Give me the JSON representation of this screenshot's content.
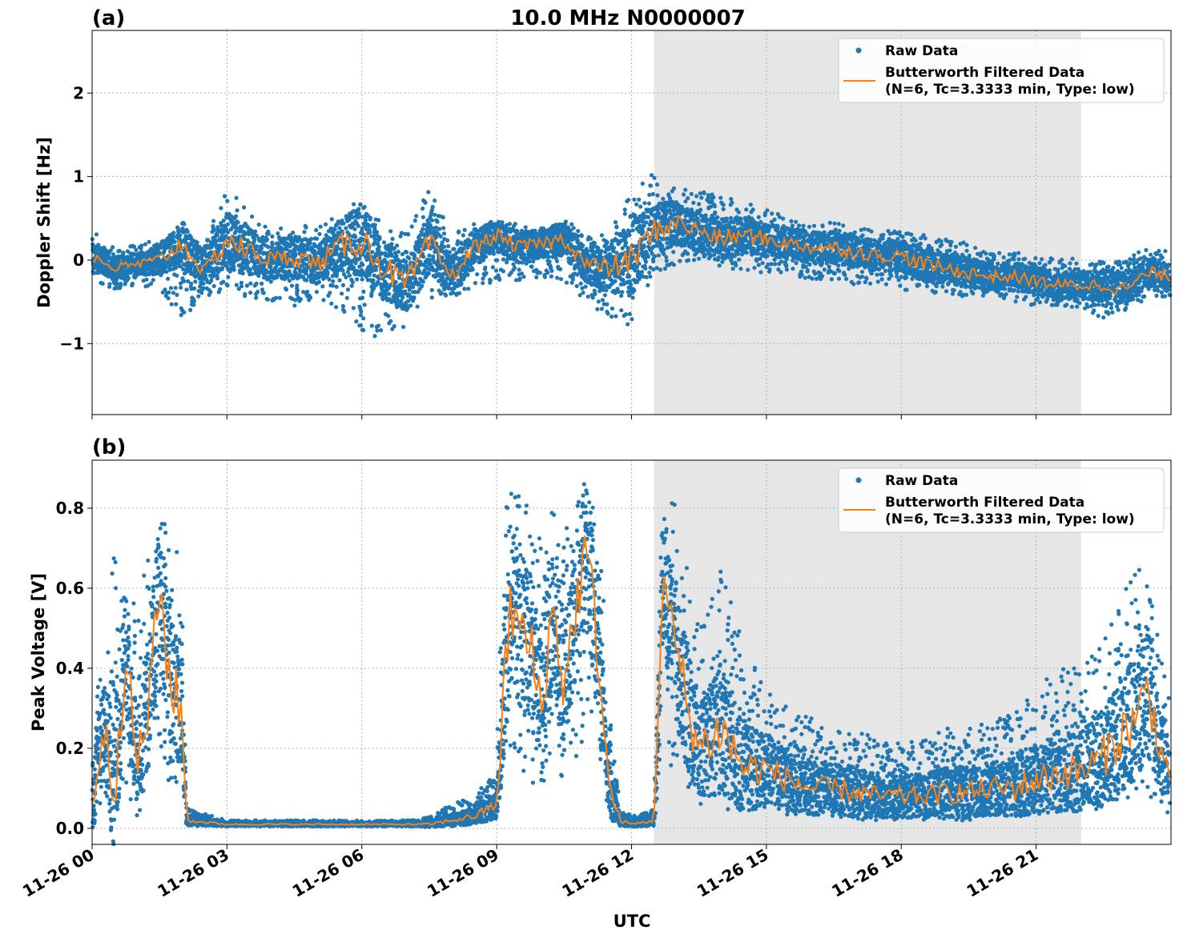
{
  "figure_title": "10.0 MHz N0000007",
  "x_axis": {
    "label": "UTC",
    "ticks": [
      "11-26 00",
      "11-26 03",
      "11-26 06",
      "11-26 09",
      "11-26 12",
      "11-26 15",
      "11-26 18",
      "11-26 21"
    ],
    "xlim_hours": [
      0,
      24
    ]
  },
  "shaded_interval_hours": [
    12.5,
    22.0
  ],
  "colors": {
    "raw": "#1f77b4",
    "filtered": "#ff7f0e",
    "shade": "#e6e6e6",
    "grid": "#b0b0b0"
  },
  "legend": {
    "raw_label": "Raw Data",
    "filtered_label_line1": "Butterworth Filtered Data",
    "filtered_label_line2": "(N=6, Tc=3.3333 min, Type: low)",
    "placement": "top-right"
  },
  "panels": {
    "a": {
      "tag": "(a)",
      "ylabel": "Doppler Shift [Hz]",
      "ylim": [
        -1.85,
        2.75
      ],
      "yticks": [
        "−1",
        "0",
        "1",
        "2"
      ],
      "ytick_values": [
        -1,
        0,
        1,
        2
      ]
    },
    "b": {
      "tag": "(b)",
      "ylabel": "Peak Voltage [V]",
      "ylim": [
        -0.04,
        0.92
      ],
      "yticks": [
        "0.0",
        "0.2",
        "0.4",
        "0.6",
        "0.8"
      ],
      "ytick_values": [
        0.0,
        0.2,
        0.4,
        0.6,
        0.8
      ]
    }
  },
  "chart_data": [
    {
      "type": "scatter",
      "title": "10.0 MHz N0000007",
      "xlabel": "UTC",
      "ylabel": "Doppler Shift [Hz]",
      "x_unit": "hours after 11-26 00 UTC",
      "xlim": [
        0,
        24
      ],
      "ylim": [
        -1.85,
        2.75
      ],
      "grid": true,
      "series": [
        {
          "name": "Butterworth Filtered Data",
          "x": [
            0,
            0.5,
            1,
            1.5,
            2,
            2.5,
            3,
            3.5,
            4,
            4.5,
            5,
            5.5,
            6,
            6.5,
            7,
            7.5,
            8,
            8.5,
            9,
            9.5,
            10,
            10.5,
            11,
            11.5,
            12,
            12.5,
            13,
            13.5,
            14,
            14.5,
            15,
            15.5,
            16,
            16.5,
            17,
            17.5,
            18,
            18.5,
            19,
            19.5,
            20,
            20.5,
            21,
            21.5,
            22,
            22.5,
            23,
            23.5,
            24
          ],
          "y": [
            0.05,
            -0.1,
            -0.05,
            0.0,
            0.2,
            -0.15,
            0.25,
            0.1,
            0.0,
            0.05,
            -0.05,
            0.15,
            0.25,
            -0.1,
            -0.3,
            0.2,
            -0.2,
            0.15,
            0.3,
            0.15,
            0.2,
            0.25,
            -0.05,
            -0.1,
            0.0,
            0.35,
            0.45,
            0.35,
            0.25,
            0.3,
            0.25,
            0.2,
            0.15,
            0.15,
            0.1,
            0.05,
            0.05,
            -0.05,
            -0.1,
            -0.15,
            -0.2,
            -0.2,
            -0.25,
            -0.3,
            -0.3,
            -0.3,
            -0.35,
            -0.15,
            -0.2
          ]
        },
        {
          "name": "Raw Data",
          "envelope_low": [
            -0.25,
            -0.35,
            -0.3,
            -0.35,
            -0.7,
            -0.45,
            -0.35,
            -0.45,
            -0.5,
            -0.55,
            -0.45,
            -0.65,
            -0.85,
            -1.0,
            -0.8,
            -0.45,
            -0.45,
            -0.35,
            -0.25,
            -0.25,
            -0.2,
            -0.25,
            -0.5,
            -0.7,
            -0.8,
            -0.15,
            -0.05,
            0.0,
            -0.1,
            -0.15,
            -0.15,
            -0.15,
            -0.25,
            -0.25,
            -0.3,
            -0.3,
            -0.35,
            -0.4,
            -0.4,
            -0.45,
            -0.45,
            -0.5,
            -0.55,
            -0.55,
            -0.6,
            -0.7,
            -0.6,
            -0.45,
            -0.45
          ],
          "envelope_high": [
            0.35,
            0.15,
            0.2,
            0.25,
            0.3,
            0.2,
            0.9,
            0.55,
            0.35,
            0.45,
            0.45,
            0.55,
            0.75,
            0.4,
            0.35,
            0.85,
            0.3,
            0.45,
            0.45,
            0.45,
            0.4,
            0.5,
            0.3,
            0.35,
            0.8,
            1.05,
            0.85,
            0.85,
            0.8,
            0.7,
            0.6,
            0.5,
            0.45,
            0.45,
            0.4,
            0.35,
            0.35,
            0.3,
            0.25,
            0.2,
            0.15,
            0.1,
            0.05,
            0.05,
            0.0,
            0.0,
            0.05,
            0.15,
            0.1
          ]
        }
      ]
    },
    {
      "type": "scatter",
      "xlabel": "UTC",
      "ylabel": "Peak Voltage [V]",
      "x_unit": "hours after 11-26 00 UTC",
      "xlim": [
        0,
        24
      ],
      "ylim": [
        -0.04,
        0.92
      ],
      "grid": true,
      "series": [
        {
          "name": "Butterworth Filtered Data",
          "x": [
            0,
            0.25,
            0.5,
            0.75,
            1,
            1.25,
            1.5,
            1.75,
            2,
            2.1,
            3,
            4,
            5,
            6,
            7,
            7.5,
            8,
            8.5,
            9,
            9.2,
            9.3,
            9.5,
            9.75,
            10,
            10.25,
            10.5,
            10.75,
            11,
            11.25,
            11.5,
            11.75,
            12,
            12.5,
            12.7,
            12.85,
            13,
            13.25,
            13.5,
            14,
            14.5,
            15,
            15.5,
            16,
            16.5,
            17,
            17.5,
            18,
            18.5,
            19,
            19.5,
            20,
            20.5,
            21,
            21.5,
            22,
            22.5,
            23,
            23.25,
            23.5,
            23.75,
            24
          ],
          "y": [
            0.06,
            0.25,
            0.1,
            0.45,
            0.15,
            0.3,
            0.6,
            0.35,
            0.3,
            0.02,
            0.01,
            0.01,
            0.01,
            0.01,
            0.01,
            0.01,
            0.02,
            0.03,
            0.06,
            0.4,
            0.55,
            0.5,
            0.45,
            0.3,
            0.55,
            0.35,
            0.55,
            0.7,
            0.45,
            0.1,
            0.02,
            0.01,
            0.02,
            0.65,
            0.5,
            0.45,
            0.3,
            0.2,
            0.25,
            0.15,
            0.15,
            0.12,
            0.1,
            0.1,
            0.09,
            0.08,
            0.08,
            0.08,
            0.09,
            0.09,
            0.1,
            0.1,
            0.12,
            0.14,
            0.14,
            0.18,
            0.25,
            0.28,
            0.35,
            0.2,
            0.12
          ]
        },
        {
          "name": "Raw Data",
          "envelope_low": [
            0.0,
            0.05,
            0.02,
            0.1,
            0.03,
            0.05,
            0.2,
            0.08,
            0.05,
            0.005,
            0.005,
            0.005,
            0.005,
            0.005,
            0.005,
            0.005,
            0.008,
            0.01,
            0.02,
            0.15,
            0.2,
            0.15,
            0.1,
            0.1,
            0.2,
            0.1,
            0.15,
            0.25,
            0.15,
            0.02,
            0.005,
            0.005,
            0.005,
            0.25,
            0.15,
            0.12,
            0.06,
            0.05,
            0.05,
            0.04,
            0.04,
            0.03,
            0.03,
            0.03,
            0.02,
            0.02,
            0.02,
            0.02,
            0.02,
            0.02,
            0.03,
            0.03,
            0.03,
            0.04,
            0.04,
            0.05,
            0.06,
            0.07,
            0.08,
            0.05,
            0.02
          ],
          "envelope_high": [
            0.3,
            0.5,
            0.7,
            0.6,
            0.55,
            0.7,
            0.85,
            0.75,
            0.65,
            0.05,
            0.02,
            0.02,
            0.02,
            0.02,
            0.02,
            0.03,
            0.06,
            0.08,
            0.15,
            0.87,
            0.85,
            0.85,
            0.8,
            0.7,
            0.85,
            0.75,
            0.85,
            0.87,
            0.85,
            0.3,
            0.05,
            0.03,
            0.05,
            0.87,
            0.85,
            0.8,
            0.65,
            0.5,
            0.65,
            0.45,
            0.35,
            0.3,
            0.28,
            0.25,
            0.25,
            0.22,
            0.22,
            0.22,
            0.25,
            0.25,
            0.27,
            0.3,
            0.35,
            0.4,
            0.4,
            0.5,
            0.6,
            0.65,
            0.7,
            0.45,
            0.3
          ]
        }
      ]
    }
  ]
}
